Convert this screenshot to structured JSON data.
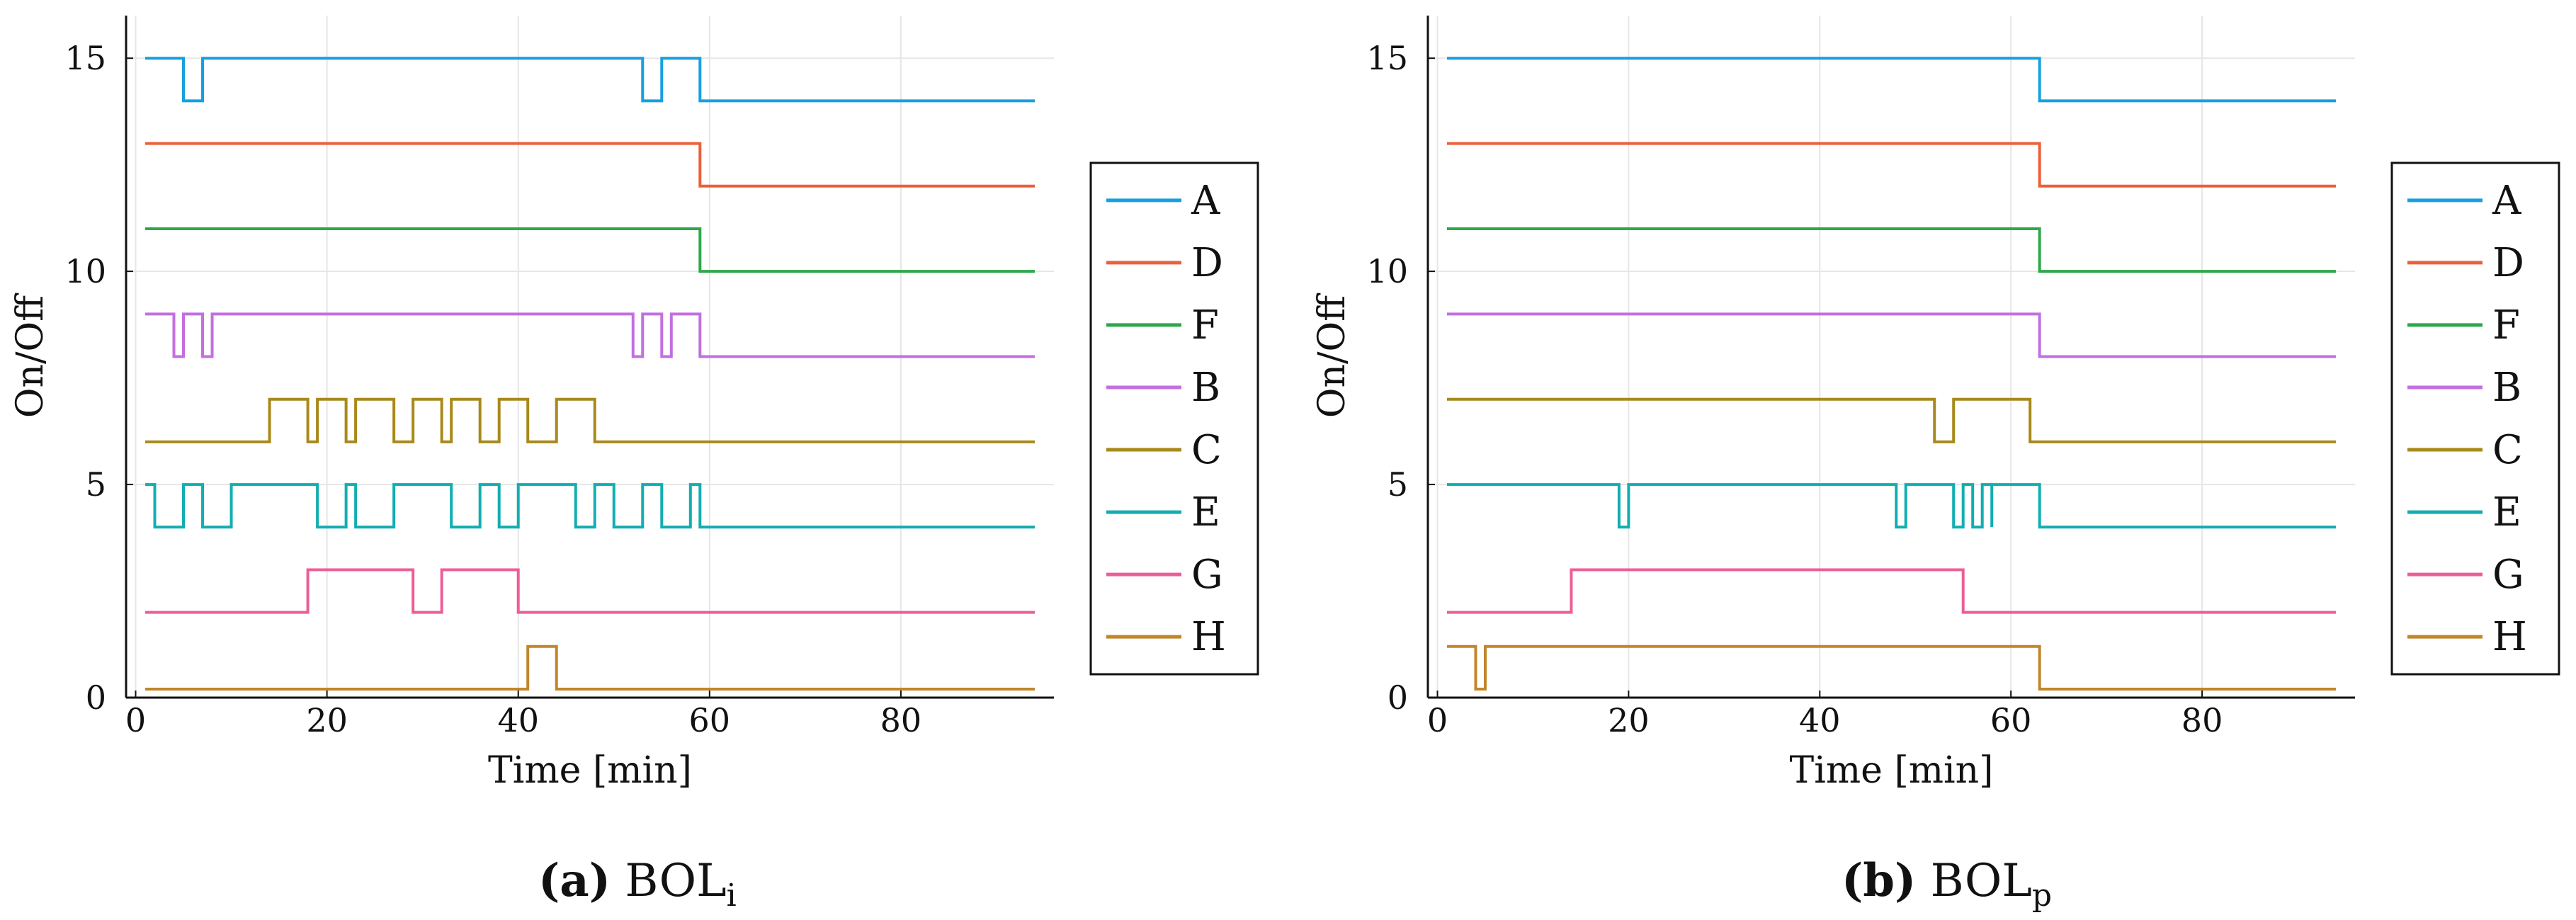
{
  "colors": {
    "A": "#179fe0",
    "D": "#ec5f3a",
    "F": "#2da84a",
    "B": "#c26fe0",
    "C": "#a8891b",
    "E": "#12aeb1",
    "G": "#ec5e97",
    "H": "#c1862b"
  },
  "chart_data": [
    {
      "type": "line",
      "step": true,
      "caption_tag": "(a)",
      "caption_main": "BOL",
      "caption_sub": "i",
      "xlabel": "Time [min]",
      "ylabel": "On/Off",
      "xlim": [
        -1,
        96
      ],
      "ylim": [
        0,
        16
      ],
      "xticks": [
        0,
        20,
        40,
        60,
        80
      ],
      "yticks": [
        0,
        5,
        10,
        15
      ],
      "grid": true,
      "legend_position": "right",
      "series": [
        {
          "name": "A",
          "offset": 14,
          "x_end": 94,
          "points": [
            [
              1,
              1
            ],
            [
              5,
              0
            ],
            [
              7,
              1
            ],
            [
              53,
              0
            ],
            [
              55,
              1
            ],
            [
              59,
              0
            ]
          ]
        },
        {
          "name": "D",
          "offset": 12,
          "x_end": 94,
          "points": [
            [
              1,
              1
            ],
            [
              59,
              0
            ]
          ]
        },
        {
          "name": "F",
          "offset": 10,
          "x_end": 94,
          "points": [
            [
              1,
              1
            ],
            [
              59,
              0
            ]
          ]
        },
        {
          "name": "B",
          "offset": 8,
          "x_end": 94,
          "points": [
            [
              1,
              1
            ],
            [
              4,
              0
            ],
            [
              5,
              1
            ],
            [
              7,
              0
            ],
            [
              8,
              1
            ],
            [
              52,
              0
            ],
            [
              53,
              1
            ],
            [
              55,
              0
            ],
            [
              56,
              1
            ],
            [
              59,
              0
            ]
          ]
        },
        {
          "name": "C",
          "offset": 6,
          "x_end": 94,
          "points": [
            [
              1,
              0
            ],
            [
              14,
              1
            ],
            [
              18,
              0
            ],
            [
              19,
              1
            ],
            [
              22,
              0
            ],
            [
              23,
              1
            ],
            [
              27,
              0
            ],
            [
              29,
              1
            ],
            [
              32,
              0
            ],
            [
              33,
              1
            ],
            [
              36,
              0
            ],
            [
              38,
              1
            ],
            [
              41,
              0
            ],
            [
              44,
              1
            ],
            [
              48,
              0
            ]
          ]
        },
        {
          "name": "E",
          "offset": 4,
          "x_end": 94,
          "points": [
            [
              1,
              1
            ],
            [
              2,
              0
            ],
            [
              5,
              1
            ],
            [
              7,
              0
            ],
            [
              10,
              1
            ],
            [
              19,
              0
            ],
            [
              22,
              1
            ],
            [
              23,
              0
            ],
            [
              27,
              1
            ],
            [
              33,
              0
            ],
            [
              36,
              1
            ],
            [
              38,
              0
            ],
            [
              40,
              1
            ],
            [
              46,
              0
            ],
            [
              48,
              1
            ],
            [
              50,
              0
            ],
            [
              53,
              1
            ],
            [
              55,
              0
            ],
            [
              58,
              1
            ],
            [
              59,
              0
            ]
          ]
        },
        {
          "name": "G",
          "offset": 2,
          "x_end": 94,
          "points": [
            [
              1,
              0
            ],
            [
              18,
              1
            ],
            [
              29,
              0
            ],
            [
              32,
              1
            ],
            [
              40,
              0
            ]
          ]
        },
        {
          "name": "H",
          "offset": 0.2,
          "x_end": 94,
          "points": [
            [
              1,
              0
            ],
            [
              41,
              1
            ],
            [
              44,
              0
            ]
          ]
        }
      ]
    },
    {
      "type": "line",
      "step": true,
      "caption_tag": "(b)",
      "caption_main": "BOL",
      "caption_sub": "p",
      "xlabel": "Time [min]",
      "ylabel": "On/Off",
      "xlim": [
        -1,
        96
      ],
      "ylim": [
        0,
        16
      ],
      "xticks": [
        0,
        20,
        40,
        60,
        80
      ],
      "yticks": [
        0,
        5,
        10,
        15
      ],
      "grid": true,
      "legend_position": "right",
      "series": [
        {
          "name": "A",
          "offset": 14,
          "x_end": 94,
          "points": [
            [
              1,
              1
            ],
            [
              63,
              0
            ]
          ]
        },
        {
          "name": "D",
          "offset": 12,
          "x_end": 94,
          "points": [
            [
              1,
              1
            ],
            [
              63,
              0
            ]
          ]
        },
        {
          "name": "F",
          "offset": 10,
          "x_end": 94,
          "points": [
            [
              1,
              1
            ],
            [
              63,
              0
            ]
          ]
        },
        {
          "name": "B",
          "offset": 8,
          "x_end": 94,
          "points": [
            [
              1,
              1
            ],
            [
              63,
              0
            ]
          ]
        },
        {
          "name": "C",
          "offset": 6,
          "x_end": 94,
          "points": [
            [
              1,
              1
            ],
            [
              52,
              0
            ],
            [
              54,
              1
            ],
            [
              62,
              0
            ]
          ]
        },
        {
          "name": "E",
          "offset": 4,
          "x_end": 94,
          "points": [
            [
              1,
              1
            ],
            [
              19,
              0
            ],
            [
              20,
              1
            ],
            [
              48,
              0
            ],
            [
              49,
              1
            ],
            [
              54,
              0
            ],
            [
              55,
              1
            ],
            [
              56,
              0
            ],
            [
              57,
              1
            ],
            [
              58,
              0
            ],
            [
              58,
              1
            ],
            [
              63,
              0
            ]
          ]
        },
        {
          "name": "G",
          "offset": 2,
          "x_end": 94,
          "points": [
            [
              1,
              0
            ],
            [
              14,
              1
            ],
            [
              55,
              0
            ]
          ]
        },
        {
          "name": "H",
          "offset": 0.2,
          "x_end": 94,
          "points": [
            [
              1,
              1
            ],
            [
              4,
              0
            ],
            [
              5,
              1
            ],
            [
              63,
              0
            ]
          ]
        }
      ]
    }
  ]
}
